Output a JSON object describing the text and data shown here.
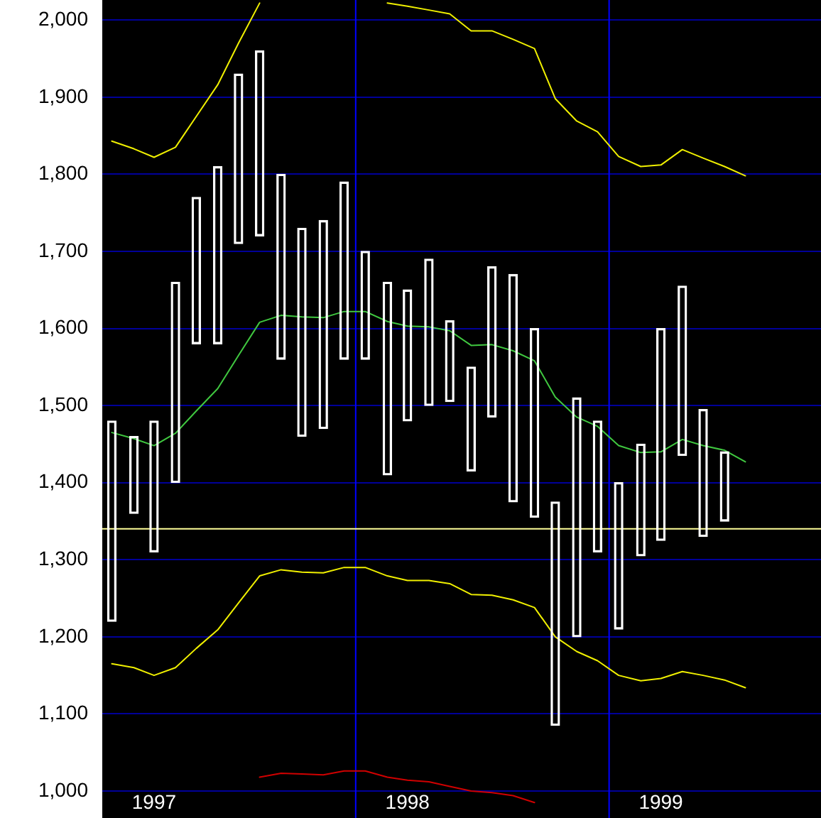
{
  "chart_data": {
    "type": "bar",
    "x": [
      "1997-01-15",
      "1997-02-15",
      "1997-03-15",
      "1997-04-15",
      "1997-05-15",
      "1997-06-15",
      "1997-07-15",
      "1997-08-15",
      "1997-09-15",
      "1997-10-15",
      "1997-11-15",
      "1997-12-15",
      "1998-01-15",
      "1998-02-15",
      "1998-03-15",
      "1998-04-15",
      "1998-05-15",
      "1998-06-15",
      "1998-07-15",
      "1998-08-15",
      "1998-09-15",
      "1998-10-15",
      "1998-11-15",
      "1998-12-15",
      "1999-01-15",
      "1999-02-15",
      "1999-03-15",
      "1999-04-15",
      "1999-05-15",
      "1999-06-15",
      "1999-07-15"
    ],
    "series": [
      {
        "color": "#ffffff",
        "base": [
          1220,
          1360,
          1310,
          1400,
          1580,
          1580,
          1710,
          1720,
          1560,
          1460,
          1470,
          1560,
          1560,
          1410,
          1480,
          1500,
          1505,
          1415,
          1485,
          1375,
          1355,
          1085,
          1200,
          1310,
          1210,
          1305,
          1325,
          1435,
          1330,
          1350,
          null
        ],
        "values": [
          260,
          100,
          170,
          260,
          190,
          230,
          220,
          240,
          240,
          270,
          270,
          230,
          140,
          250,
          170,
          190,
          105,
          135,
          195,
          295,
          245,
          290,
          310,
          170,
          190,
          145,
          275,
          220,
          165,
          90,
          null
        ]
      },
      {
        "type": "line",
        "color": "#40c840",
        "values": [
          1465,
          1457,
          1448,
          1464,
          1493,
          1522,
          1565,
          1608,
          1617,
          1615,
          1614,
          1622,
          1622,
          1609,
          1603,
          1602,
          1597,
          1578,
          1579,
          1571,
          1558,
          1511,
          1485,
          1473,
          1448,
          1439,
          1440,
          1456,
          1448,
          1442,
          1427
        ]
      },
      {
        "type": "line",
        "color": "#f0f000",
        "values": [
          1843,
          1833,
          1822,
          1835,
          1875,
          1916,
          1970,
          2022,
          null,
          null,
          null,
          null,
          null,
          2022,
          2018,
          2013,
          2008,
          1986,
          1986,
          1975,
          1963,
          1898,
          1869,
          1855,
          1823,
          1810,
          1812,
          1832,
          1821,
          1810,
          1798
        ]
      },
      {
        "type": "line",
        "color": "#f0f000",
        "values": [
          1165,
          1160,
          1150,
          1160,
          1185,
          1209,
          1244,
          1279,
          1287,
          1284,
          1283,
          1290,
          1290,
          1279,
          1273,
          1273,
          1269,
          1255,
          1254,
          1248,
          1238,
          1200,
          1181,
          1169,
          1150,
          1143,
          1146,
          1155,
          1150,
          1144,
          1134
        ]
      },
      {
        "type": "line",
        "color": "#d00000",
        "values": [
          null,
          null,
          null,
          null,
          null,
          null,
          null,
          1018,
          1023,
          1022,
          1021,
          1026,
          1026,
          1018,
          1014,
          1012,
          1006,
          1000,
          998,
          994,
          985,
          null,
          null,
          null,
          null,
          null,
          null,
          null,
          null,
          null,
          null
        ]
      }
    ],
    "xlim": [
      "1997-01-01",
      "1999-11-02"
    ],
    "xticks": [
      {
        "value": "1997-03-15",
        "label": "1997"
      },
      {
        "value": "1998-03-15",
        "label": "1998"
      },
      {
        "value": "1999-03-15",
        "label": "1999"
      }
    ],
    "ylim": [
      965,
      2026
    ],
    "yticks": [
      {
        "value": 1000,
        "label": "1,000"
      },
      {
        "value": 1100,
        "label": "1,100"
      },
      {
        "value": 1200,
        "label": "1,200"
      },
      {
        "value": 1300,
        "label": "1,300"
      },
      {
        "value": 1400,
        "label": "1,400"
      },
      {
        "value": 1500,
        "label": "1,500"
      },
      {
        "value": 1600,
        "label": "1,600"
      },
      {
        "value": 1700,
        "label": "1,700"
      },
      {
        "value": 1800,
        "label": "1,800"
      },
      {
        "value": 1900,
        "label": "1,900"
      },
      {
        "value": 2000,
        "label": "2,000"
      }
    ],
    "grid": "y",
    "ref_lines": [
      {
        "axis": "x",
        "value": "1998-01-01",
        "color": "#0000ff"
      },
      {
        "axis": "x",
        "value": "1999-01-01",
        "color": "#0000ff"
      },
      {
        "axis": "y",
        "value": 1340,
        "color": "#ffff99"
      }
    ]
  }
}
